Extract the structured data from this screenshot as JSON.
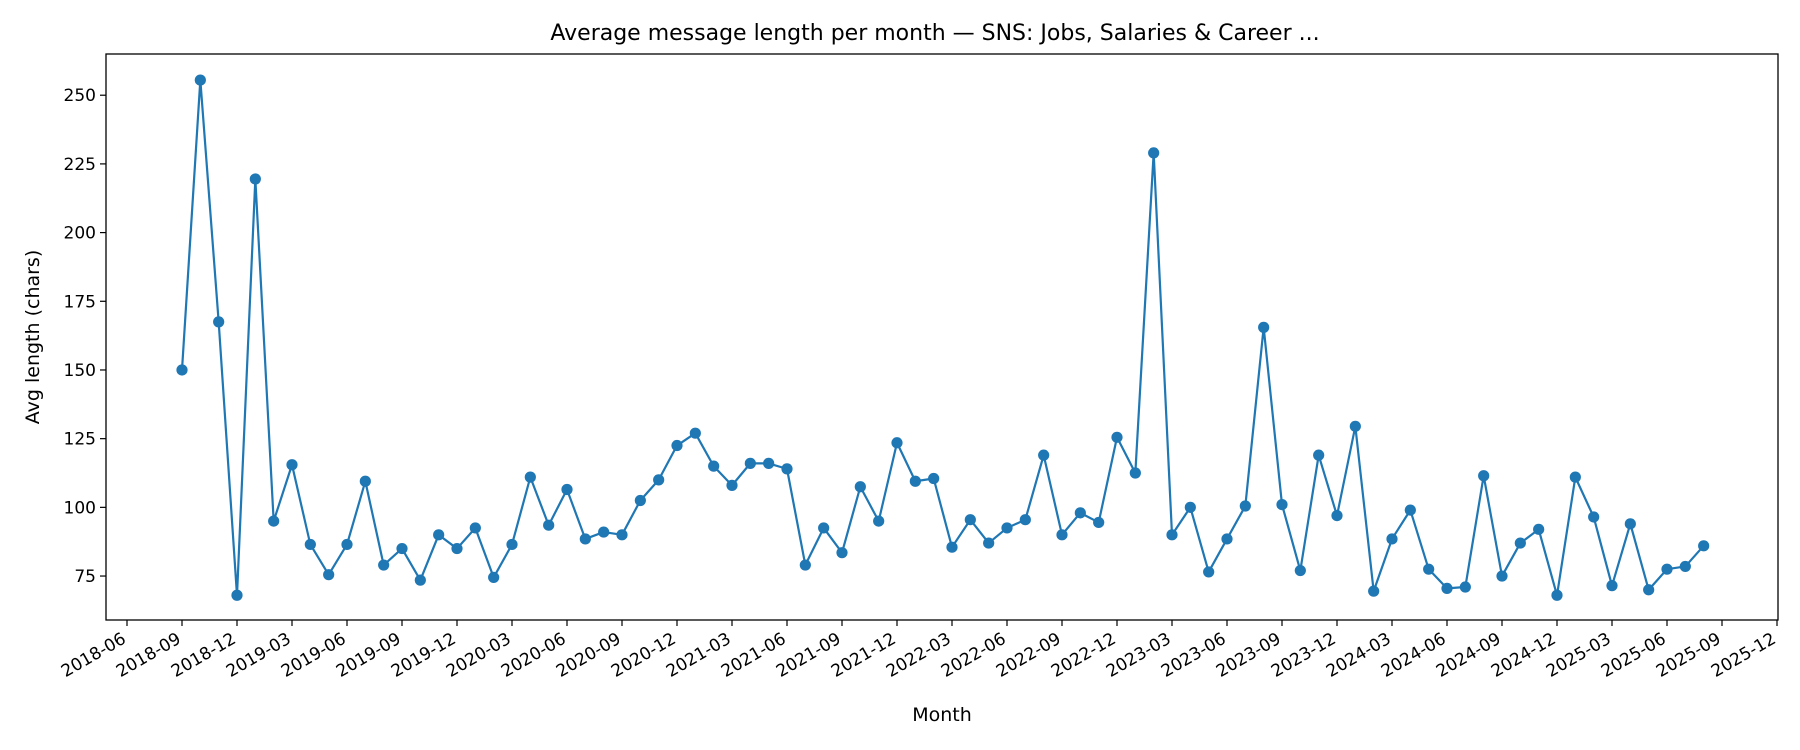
{
  "chart_data": {
    "type": "line",
    "title": "Average message length per month — SNS: Jobs, Salaries & Career ...",
    "xlabel": "Month",
    "ylabel": "Avg length (chars)",
    "color": "#1f77b4",
    "grid": false,
    "legend": "none",
    "xlim": [
      "2018-06",
      "2025-12"
    ],
    "ylim": [
      59,
      265
    ],
    "yticks": [
      75,
      100,
      125,
      150,
      175,
      200,
      225,
      250
    ],
    "xticks": [
      "2018-06",
      "2018-09",
      "2018-12",
      "2019-03",
      "2019-06",
      "2019-09",
      "2019-12",
      "2020-03",
      "2020-06",
      "2020-09",
      "2020-12",
      "2021-03",
      "2021-06",
      "2021-09",
      "2021-12",
      "2022-03",
      "2022-06",
      "2022-09",
      "2022-12",
      "2023-03",
      "2023-06",
      "2023-09",
      "2023-12",
      "2024-03",
      "2024-06",
      "2024-09",
      "2024-12",
      "2025-03",
      "2025-06",
      "2025-09",
      "2025-12"
    ],
    "series": [
      {
        "x": [
          "2018-09",
          "2018-10",
          "2018-11",
          "2018-12",
          "2019-01",
          "2019-02",
          "2019-03",
          "2019-04",
          "2019-05",
          "2019-06",
          "2019-07",
          "2019-08",
          "2019-09",
          "2019-10",
          "2019-11",
          "2019-12",
          "2020-01",
          "2020-02",
          "2020-03",
          "2020-04",
          "2020-05",
          "2020-06",
          "2020-07",
          "2020-08",
          "2020-09",
          "2020-10",
          "2020-11",
          "2020-12",
          "2021-01",
          "2021-02",
          "2021-03",
          "2021-04",
          "2021-05",
          "2021-06",
          "2021-07",
          "2021-08",
          "2021-09",
          "2021-10",
          "2021-11",
          "2021-12",
          "2022-01",
          "2022-02",
          "2022-03",
          "2022-04",
          "2022-05",
          "2022-06",
          "2022-07",
          "2022-08",
          "2022-09",
          "2022-10",
          "2022-11",
          "2022-12",
          "2023-01",
          "2023-02",
          "2023-03",
          "2023-04",
          "2023-05",
          "2023-06",
          "2023-07",
          "2023-08",
          "2023-09",
          "2023-10",
          "2023-11",
          "2023-12",
          "2024-01",
          "2024-02",
          "2024-03",
          "2024-04",
          "2024-05",
          "2024-06",
          "2024-07",
          "2024-08",
          "2024-09",
          "2024-10",
          "2024-11",
          "2024-12",
          "2025-01",
          "2025-02",
          "2025-03",
          "2025-04",
          "2025-05",
          "2025-06",
          "2025-07",
          "2025-08"
        ],
        "values": [
          150,
          255.5,
          167.5,
          68,
          219.5,
          95,
          115.5,
          86.5,
          75.5,
          86.5,
          109.5,
          79,
          85,
          73.5,
          90,
          85,
          92.5,
          74.5,
          86.5,
          111,
          93.5,
          106.5,
          88.5,
          91,
          90,
          102.5,
          110,
          122.5,
          127,
          115,
          108,
          116,
          116,
          114,
          79,
          92.5,
          83.5,
          107.5,
          95,
          123.5,
          109.5,
          110.5,
          85.5,
          95.5,
          87,
          92.5,
          95.5,
          119,
          90,
          98,
          94.5,
          125.5,
          112.5,
          229,
          90,
          100,
          76.5,
          88.5,
          100.5,
          165.5,
          101,
          77,
          119,
          97,
          129.5,
          69.5,
          88.5,
          99,
          77.5,
          70.5,
          71,
          111.5,
          75,
          87,
          92,
          68,
          111,
          96.5,
          71.5,
          94,
          70,
          77.5,
          78.5,
          86
        ]
      }
    ]
  }
}
